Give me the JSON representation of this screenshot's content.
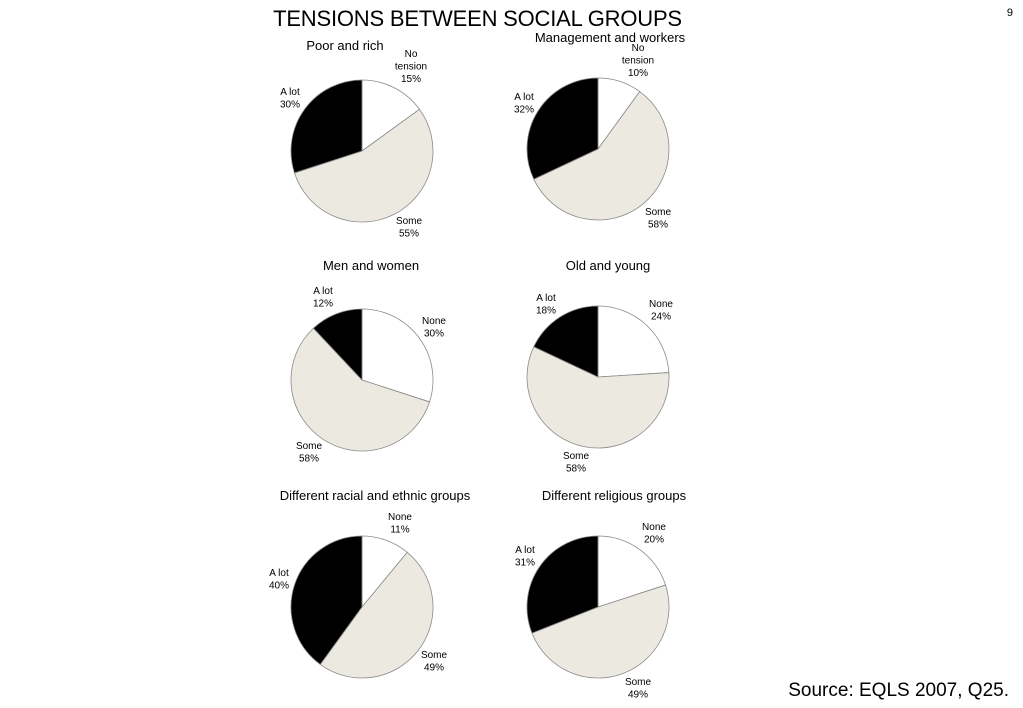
{
  "page": {
    "title": "TENSIONS BETWEEN SOCIAL GROUPS",
    "page_number": "9",
    "source": "Source: EQLS 2007, Q25."
  },
  "colors": {
    "a_lot": "#000000",
    "some": "#ebe9e0",
    "none": "#ffffff",
    "stroke": "#8a8a8a"
  },
  "chart_data": [
    {
      "type": "pie",
      "title": "Poor and rich",
      "slices": [
        {
          "key": "none",
          "label": [
            "No",
            "tension",
            "15%"
          ],
          "value": 15
        },
        {
          "key": "some",
          "label": [
            "Some",
            "55%"
          ],
          "value": 55
        },
        {
          "key": "a_lot",
          "label": [
            "A lot",
            "30%"
          ],
          "value": 30
        }
      ]
    },
    {
      "type": "pie",
      "title": "Management and workers",
      "slices": [
        {
          "key": "none",
          "label": [
            "No",
            "tension",
            "10%"
          ],
          "value": 10
        },
        {
          "key": "some",
          "label": [
            "Some",
            "58%"
          ],
          "value": 58
        },
        {
          "key": "a_lot",
          "label": [
            "A lot",
            "32%"
          ],
          "value": 32
        }
      ]
    },
    {
      "type": "pie",
      "title": "Men and women",
      "slices": [
        {
          "key": "none",
          "label": [
            "None",
            "30%"
          ],
          "value": 30
        },
        {
          "key": "some",
          "label": [
            "Some",
            "58%"
          ],
          "value": 58
        },
        {
          "key": "a_lot",
          "label": [
            "A lot",
            "12%"
          ],
          "value": 12
        }
      ]
    },
    {
      "type": "pie",
      "title": "Old and young",
      "slices": [
        {
          "key": "none",
          "label": [
            "None",
            "24%"
          ],
          "value": 24
        },
        {
          "key": "some",
          "label": [
            "Some",
            "58%"
          ],
          "value": 58
        },
        {
          "key": "a_lot",
          "label": [
            "A lot",
            "18%"
          ],
          "value": 18
        }
      ]
    },
    {
      "type": "pie",
      "title": "Different racial and ethnic groups",
      "slices": [
        {
          "key": "none",
          "label": [
            "None",
            "11%"
          ],
          "value": 11
        },
        {
          "key": "some",
          "label": [
            "Some",
            "49%"
          ],
          "value": 49
        },
        {
          "key": "a_lot",
          "label": [
            "A lot",
            "40%"
          ],
          "value": 40
        }
      ]
    },
    {
      "type": "pie",
      "title": "Different religious groups",
      "slices": [
        {
          "key": "none",
          "label": [
            "None",
            "20%"
          ],
          "value": 20
        },
        {
          "key": "some",
          "label": [
            "Some",
            "49%"
          ],
          "value": 49
        },
        {
          "key": "a_lot",
          "label": [
            "A lot",
            "31%"
          ],
          "value": 31
        }
      ]
    }
  ]
}
